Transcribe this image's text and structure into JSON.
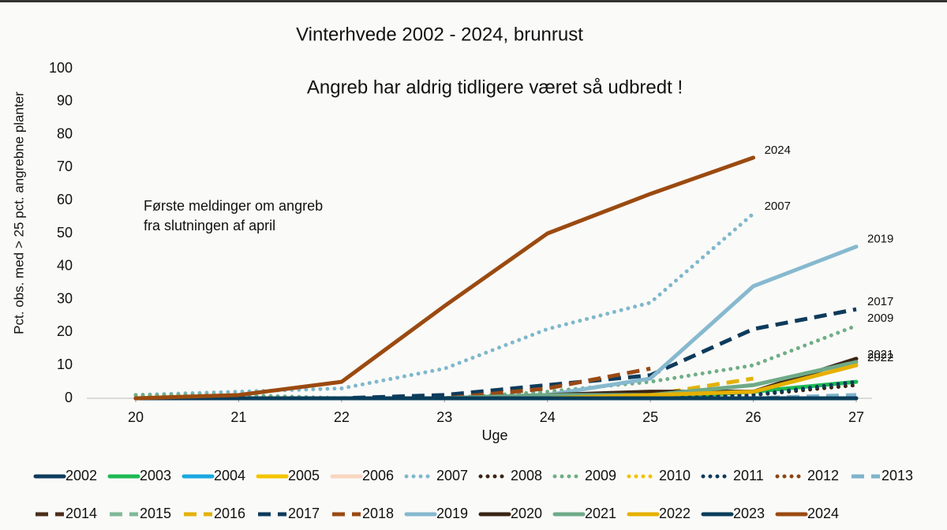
{
  "chart_data": {
    "type": "line",
    "title": "Vinterhvede 2002 - 2024, brunrust",
    "subtitle": "Angreb har aldrig tidligere været så udbredt !",
    "annotation": [
      "Første meldinger om angreb",
      "fra slutningen af april"
    ],
    "x_label": "Uge",
    "y_label": "Pct. obs. med > 25 pct. angrebne planter",
    "x": [
      20,
      21,
      22,
      23,
      24,
      25,
      26,
      27
    ],
    "xlim": [
      20,
      27
    ],
    "xticks": [
      20,
      21,
      22,
      23,
      24,
      25,
      26,
      27
    ],
    "ylim": [
      0,
      100
    ],
    "yticks": [
      0,
      10,
      20,
      30,
      40,
      50,
      60,
      70,
      80,
      90,
      100
    ],
    "grid": false,
    "series": [
      {
        "name": "2002",
        "color": "#0d3b5c",
        "dash": "solid",
        "values": [
          0,
          0,
          0,
          0,
          0,
          0,
          0,
          0
        ]
      },
      {
        "name": "2003",
        "color": "#1db954",
        "dash": "solid",
        "values": [
          0,
          0,
          0,
          0,
          0,
          0,
          2,
          5
        ]
      },
      {
        "name": "2004",
        "color": "#1aa7e0",
        "dash": "solid",
        "values": [
          0,
          0,
          0,
          0,
          0,
          0,
          0,
          0
        ]
      },
      {
        "name": "2005",
        "color": "#f5c400",
        "dash": "solid",
        "values": [
          0,
          0,
          0,
          0,
          0,
          0,
          0,
          0
        ]
      },
      {
        "name": "2006",
        "color": "#f8d5bf",
        "dash": "solid",
        "values": [
          0,
          0,
          0,
          0,
          0,
          0,
          0,
          0
        ]
      },
      {
        "name": "2007",
        "color": "#7fb8cc",
        "dash": "dotted",
        "end_label": true,
        "values": [
          1,
          2,
          3,
          9,
          21,
          29,
          56,
          null
        ]
      },
      {
        "name": "2008",
        "color": "#3b2415",
        "dash": "dotted",
        "values": [
          0,
          0,
          0,
          0,
          0,
          0,
          1,
          4
        ]
      },
      {
        "name": "2009",
        "color": "#6fae86",
        "dash": "dotted",
        "end_label": true,
        "values": [
          1,
          1,
          0,
          0,
          2,
          5,
          10,
          22
        ]
      },
      {
        "name": "2010",
        "color": "#f2c200",
        "dash": "dotted",
        "values": [
          0,
          0,
          0,
          0,
          0,
          0,
          0,
          0
        ]
      },
      {
        "name": "2011",
        "color": "#0b3a5a",
        "dash": "dotted",
        "values": [
          0,
          0,
          0,
          0,
          0,
          0,
          1,
          5
        ]
      },
      {
        "name": "2012",
        "color": "#8b4513",
        "dash": "dotted",
        "values": [
          0,
          0,
          0,
          0,
          0,
          0,
          0,
          0
        ]
      },
      {
        "name": "2013",
        "color": "#7fb3cc",
        "dash": "dashed",
        "values": [
          0,
          0,
          0,
          0,
          0,
          0,
          0,
          1
        ]
      },
      {
        "name": "2014",
        "color": "#4a2e1a",
        "dash": "dashed",
        "values": [
          0,
          0,
          0,
          0,
          0,
          0,
          0,
          0
        ]
      },
      {
        "name": "2015",
        "color": "#7fb896",
        "dash": "dashed",
        "values": [
          0,
          0,
          0,
          0,
          0,
          0,
          0,
          0
        ]
      },
      {
        "name": "2016",
        "color": "#e3b20a",
        "dash": "dashed",
        "values": [
          0,
          0,
          0,
          0,
          0,
          1,
          6,
          null
        ]
      },
      {
        "name": "2017",
        "color": "#0d3b5c",
        "dash": "dashed",
        "end_label": true,
        "values": [
          0,
          0,
          0,
          1,
          4,
          7,
          21,
          27
        ]
      },
      {
        "name": "2018",
        "color": "#9a4a14",
        "dash": "dashed",
        "values": [
          0,
          0,
          0,
          0,
          3,
          9,
          null,
          null
        ]
      },
      {
        "name": "2019",
        "color": "#86b9cf",
        "dash": "solid",
        "end_label": true,
        "values": [
          0,
          0,
          0,
          0,
          1,
          6,
          34,
          46
        ]
      },
      {
        "name": "2020",
        "color": "#3a2413",
        "dash": "solid",
        "values": [
          0,
          0,
          0,
          0,
          1,
          2,
          2,
          12
        ]
      },
      {
        "name": "2021",
        "color": "#6faa88",
        "dash": "solid",
        "end_label": true,
        "values": [
          0,
          0,
          0,
          0,
          1,
          1,
          4,
          11
        ]
      },
      {
        "name": "2022",
        "color": "#e6b000",
        "dash": "solid",
        "end_label": true,
        "values": [
          0,
          0,
          0,
          0,
          0,
          1,
          2,
          10
        ]
      },
      {
        "name": "2023",
        "color": "#0a3d5a",
        "dash": "solid",
        "values": [
          0,
          0,
          0,
          0,
          0,
          0,
          0,
          0
        ]
      },
      {
        "name": "2024",
        "color": "#9b4a10",
        "dash": "solid",
        "end_label": true,
        "values": [
          0,
          1,
          5,
          28,
          50,
          62,
          73,
          null
        ]
      }
    ]
  }
}
